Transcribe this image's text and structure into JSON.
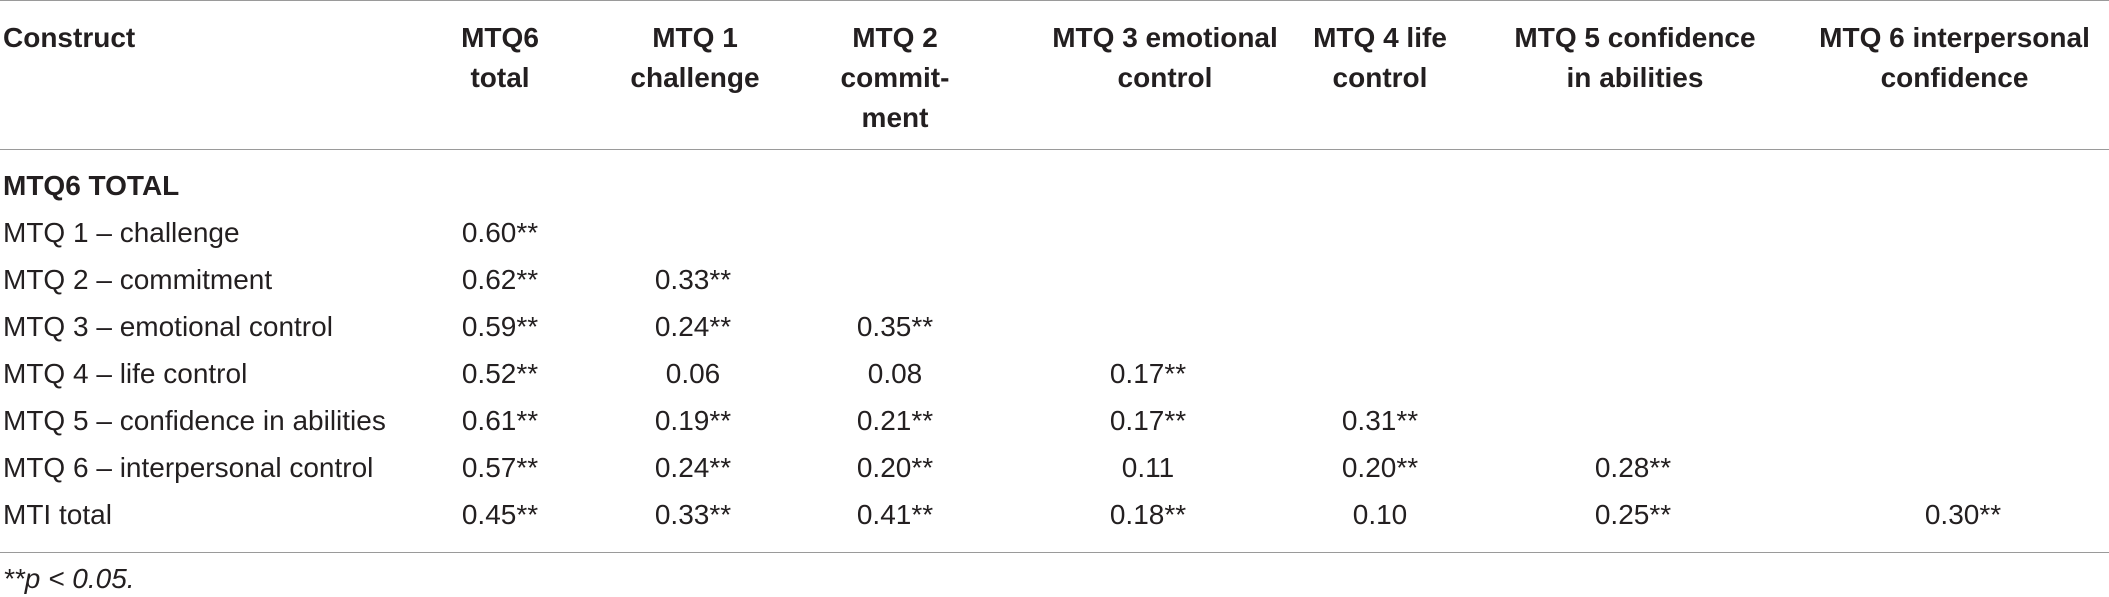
{
  "table": {
    "headers": [
      "Construct",
      "MTQ6\ntotal",
      "MTQ 1\nchallenge",
      "MTQ 2\ncommit-\nment",
      "MTQ 3 emotional\ncontrol",
      "MTQ 4 life\ncontrol",
      "MTQ 5 confidence\nin abilities",
      "MTQ 6 interpersonal\nconfidence"
    ],
    "section_label": "MTQ6 TOTAL",
    "rows": [
      {
        "label": "MTQ 1 – challenge",
        "values": [
          "0.60**",
          "",
          "",
          "",
          "",
          "",
          ""
        ]
      },
      {
        "label": "MTQ 2 – commitment",
        "values": [
          "0.62**",
          "0.33**",
          "",
          "",
          "",
          "",
          ""
        ]
      },
      {
        "label": "MTQ 3 – emotional control",
        "values": [
          "0.59**",
          "0.24**",
          "0.35**",
          "",
          "",
          "",
          ""
        ]
      },
      {
        "label": "MTQ 4 – life control",
        "values": [
          "0.52**",
          "0.06",
          "0.08",
          "0.17**",
          "",
          "",
          ""
        ]
      },
      {
        "label": "MTQ 5 – confidence in abilities",
        "values": [
          "0.61**",
          "0.19**",
          "0.21**",
          "0.17**",
          "0.31**",
          "",
          ""
        ]
      },
      {
        "label": "MTQ 6 – interpersonal control",
        "values": [
          "0.57**",
          "0.24**",
          "0.20**",
          "0.11",
          "0.20**",
          "0.28**",
          ""
        ]
      },
      {
        "label": "MTI total",
        "values": [
          "0.45**",
          "0.33**",
          "0.41**",
          "0.18**",
          "0.10",
          "0.25**",
          "0.30**"
        ]
      }
    ],
    "footnote": "**p < 0.05."
  }
}
